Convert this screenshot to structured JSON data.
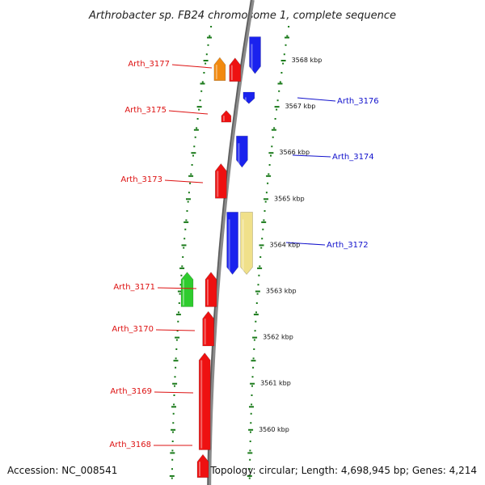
{
  "title": "Arthrobacter sp. FB24 chromosome 1, complete sequence",
  "footer": {
    "accession": "Accession: NC_008541",
    "topology": "Topology: circular; Length: 4,698,945 bp; Genes: 4,214"
  },
  "ticks": [
    "3568 kbp",
    "3567 kbp",
    "3566 kbp",
    "3565 kbp",
    "3564 kbp",
    "3563 kbp",
    "3562 kbp",
    "3561 kbp",
    "3560 kbp"
  ],
  "colors": {
    "backbone": "#8a8a8a",
    "tick_mark": "#1a7a1a",
    "minus_label": "#dd1111",
    "plus_label": "#1111cc",
    "red": "#ee1111",
    "blue": "#1a22ee",
    "orange": "#f28a10",
    "green": "#2ecc2e",
    "khaki": "#f0e08a"
  },
  "labels_left": [
    "Arth_3177",
    "Arth_3175",
    "Arth_3173",
    "Arth_3171",
    "Arth_3170",
    "Arth_3169",
    "Arth_3168"
  ],
  "labels_right": [
    "Arth_3176",
    "Arth_3174",
    "Arth_3172"
  ],
  "genes": [
    {
      "name": "Arth_3177",
      "strand": "minus",
      "color": "orange",
      "start_kbp": 3568.05,
      "end_kbp": 3567.55
    },
    {
      "name": "",
      "strand": "minus",
      "color": "red",
      "start_kbp": 3568.04,
      "end_kbp": 3567.53
    },
    {
      "name": "Arth_3176",
      "strand": "plus",
      "color": "blue",
      "start_kbp": 3568.5,
      "end_kbp": 3567.7
    },
    {
      "name": "",
      "strand": "plus",
      "color": "blue",
      "start_kbp": 3567.3,
      "end_kbp": 3567.05
    },
    {
      "name": "Arth_3175",
      "strand": "minus",
      "color": "red",
      "start_kbp": 3566.9,
      "end_kbp": 3566.65
    },
    {
      "name": "Arth_3174",
      "strand": "plus",
      "color": "blue",
      "start_kbp": 3566.35,
      "end_kbp": 3565.67
    },
    {
      "name": "Arth_3173",
      "strand": "minus",
      "color": "red",
      "start_kbp": 3565.75,
      "end_kbp": 3565.0
    },
    {
      "name": "",
      "strand": "plus",
      "color": "blue",
      "start_kbp": 3564.7,
      "end_kbp": 3563.35
    },
    {
      "name": "Arth_3172",
      "strand": "plus",
      "color": "khaki",
      "start_kbp": 3564.7,
      "end_kbp": 3563.35
    },
    {
      "name": "Arth_3171",
      "strand": "minus",
      "color": "green",
      "start_kbp": 3563.4,
      "end_kbp": 3562.65
    },
    {
      "name": "",
      "strand": "minus",
      "color": "red",
      "start_kbp": 3563.4,
      "end_kbp": 3562.65
    },
    {
      "name": "Arth_3170",
      "strand": "minus",
      "color": "red",
      "start_kbp": 3562.55,
      "end_kbp": 3561.8
    },
    {
      "name": "Arth_3169",
      "strand": "minus",
      "color": "red",
      "start_kbp": 3561.65,
      "end_kbp": 3559.55
    },
    {
      "name": "Arth_3168",
      "strand": "minus",
      "color": "red",
      "start_kbp": 3559.45,
      "end_kbp": 3558.95
    }
  ]
}
